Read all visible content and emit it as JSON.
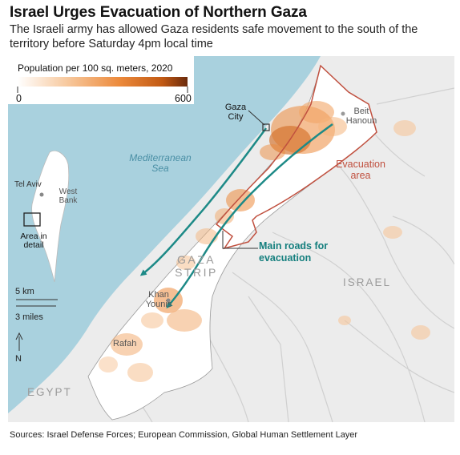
{
  "headline": "Israel Urges Evacuation of Northern Gaza",
  "subhead": "The Israeli army has allowed Gaza residents safe movement to the south of the territory before Saturday 4pm local time",
  "legend": {
    "title": "Population per 100 sq. meters, 2020",
    "min": "0",
    "max": "600",
    "colors": [
      "#ffffff",
      "#f7c79b",
      "#ec8a3c",
      "#c25a14",
      "#6a2a0c"
    ]
  },
  "labels": {
    "sea": "Mediterranean Sea",
    "gaza_city": "Gaza City",
    "beit_hanoun": "Beit Hanoun",
    "evacuation_area": "Evacuation area",
    "tel_aviv": "Tel Aviv",
    "west_bank": "West Bank",
    "area_in_detail": "Area in detail",
    "main_roads": "Main roads for evacuation",
    "gaza_strip": "GAZA STRIP",
    "israel": "ISRAEL",
    "khan_younis": "Khan Younis",
    "rafah": "Rafah",
    "egypt": "EGYPT"
  },
  "scale": {
    "km": "5 km",
    "miles": "3 miles",
    "north": "N"
  },
  "colors": {
    "sea": "#a9d1de",
    "land": "#ececec",
    "strip": "#ffffff",
    "evacuation_outline": "#c0503f",
    "roads": "#1d8a87",
    "density": "#ec8a3c"
  },
  "source": "Sources: Israel Defense Forces; European Commission, Global Human Settlement Layer"
}
